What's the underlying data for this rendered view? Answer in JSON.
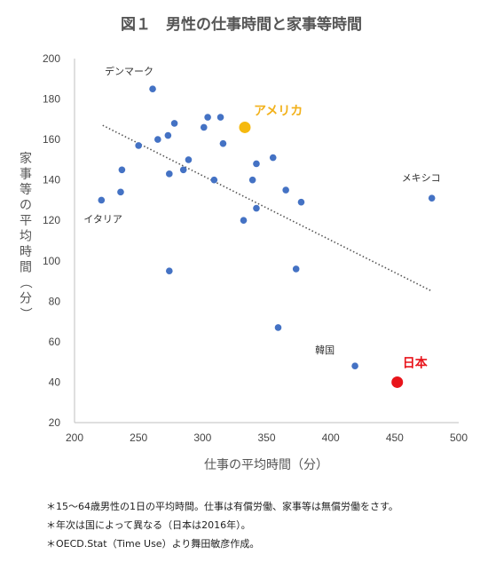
{
  "chart_data": {
    "type": "scatter",
    "title": "図１　男性の仕事時間と家事等時間",
    "xlabel": "仕事の平均時間（分）",
    "ylabel": "家事等の平均時間（分）",
    "xlim": [
      200,
      500
    ],
    "ylim": [
      20,
      200
    ],
    "xticks": [
      "200",
      "250",
      "300",
      "350",
      "400",
      "450",
      "500"
    ],
    "yticks": [
      "20",
      "40",
      "60",
      "80",
      "100",
      "120",
      "140",
      "160",
      "180",
      "200"
    ],
    "grid": false,
    "trendline": {
      "style": "dotted",
      "x": [
        222,
        479
      ],
      "y": [
        167,
        85
      ]
    },
    "colors": {
      "default": "#4472c4",
      "usa": "#f5b90f",
      "japan": "#e8141b",
      "axis": "#bfbfbf",
      "trend": "#555555"
    },
    "points": [
      {
        "x": 221,
        "y": 130
      },
      {
        "x": 236,
        "y": 134
      },
      {
        "x": 237,
        "y": 145
      },
      {
        "x": 250,
        "y": 157
      },
      {
        "x": 261,
        "y": 185
      },
      {
        "x": 265,
        "y": 160
      },
      {
        "x": 273,
        "y": 162
      },
      {
        "x": 274,
        "y": 143
      },
      {
        "x": 274,
        "y": 95
      },
      {
        "x": 278,
        "y": 168
      },
      {
        "x": 285,
        "y": 145
      },
      {
        "x": 289,
        "y": 150
      },
      {
        "x": 301,
        "y": 166
      },
      {
        "x": 304,
        "y": 171
      },
      {
        "x": 309,
        "y": 140
      },
      {
        "x": 314,
        "y": 171
      },
      {
        "x": 316,
        "y": 158
      },
      {
        "x": 332,
        "y": 120
      },
      {
        "x": 339,
        "y": 140
      },
      {
        "x": 342,
        "y": 148
      },
      {
        "x": 342,
        "y": 126
      },
      {
        "x": 355,
        "y": 151
      },
      {
        "x": 359,
        "y": 67
      },
      {
        "x": 365,
        "y": 135
      },
      {
        "x": 373,
        "y": 96
      },
      {
        "x": 377,
        "y": 129
      },
      {
        "x": 419,
        "y": 48
      },
      {
        "x": 479,
        "y": 131
      }
    ],
    "highlighted": [
      {
        "name": "アメリカ",
        "x": 333,
        "y": 166,
        "color": "#f5b90f"
      },
      {
        "name": "日本",
        "x": 452,
        "y": 40,
        "color": "#e8141b"
      }
    ],
    "annotations": [
      {
        "text": "デンマーク",
        "x": 261,
        "y": 185
      },
      {
        "text": "イタリア",
        "x": 221,
        "y": 130
      },
      {
        "text": "メキシコ",
        "x": 479,
        "y": 131
      },
      {
        "text": "韓国",
        "x": 419,
        "y": 48
      }
    ]
  },
  "notes": [
    "＊15～64歳男性の1日の平均時間。仕事は有償労働、家事等は無償労働をさす。",
    "＊年次は国によって異なる（日本は2016年）。",
    "＊OECD.Stat（Time Use）より舞田敏彦作成。"
  ]
}
